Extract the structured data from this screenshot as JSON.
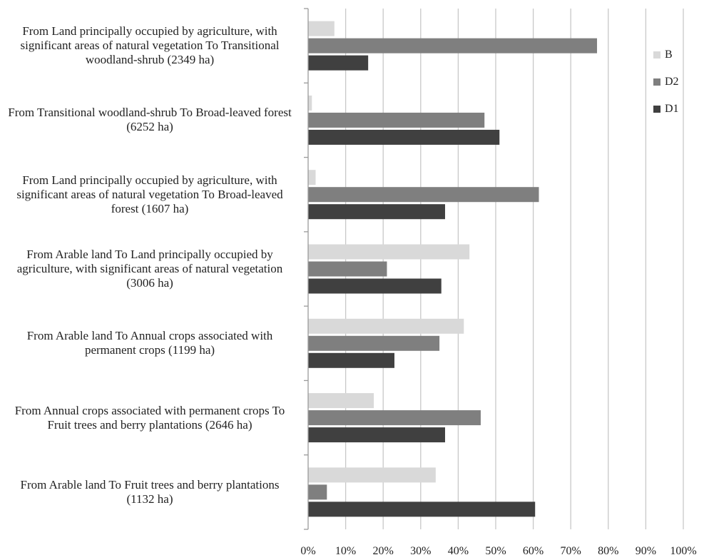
{
  "chart_data": {
    "type": "bar",
    "orientation": "horizontal",
    "categories": [
      "From Land principally occupied by agriculture, with significant areas of natural vegetation To Transitional woodland-shrub (2349 ha)",
      "From Transitional woodland-shrub To Broad-leaved forest (6252 ha)",
      "From Land principally occupied by agriculture, with significant areas of natural vegetation To Broad-leaved forest (1607 ha)",
      "From Arable land To Land principally occupied by agriculture, with significant areas of natural vegetation (3006 ha)",
      "From Arable land To Annual crops associated with permanent crops (1199 ha)",
      "From Annual crops associated with permanent crops To Fruit trees and berry plantations (2646 ha)",
      "From Arable land To Fruit trees and berry plantations (1132 ha)"
    ],
    "series": [
      {
        "name": "B",
        "color": "#d9d9d9",
        "values": [
          7,
          1,
          2,
          43,
          41.5,
          17.5,
          34
        ]
      },
      {
        "name": "D2",
        "color": "#7f7f7f",
        "values": [
          77,
          47,
          61.5,
          21,
          35,
          46,
          5
        ]
      },
      {
        "name": "D1",
        "color": "#404040",
        "values": [
          16,
          51,
          36.5,
          35.5,
          23,
          36.5,
          60.5
        ]
      }
    ],
    "xlim": [
      0,
      100
    ],
    "x_ticks": [
      "0%",
      "10%",
      "20%",
      "30%",
      "40%",
      "50%",
      "60%",
      "70%",
      "80%",
      "90%",
      "100%"
    ],
    "grid": "vertical",
    "legend_position": "top-right",
    "title": "",
    "xlabel": "",
    "ylabel": ""
  }
}
